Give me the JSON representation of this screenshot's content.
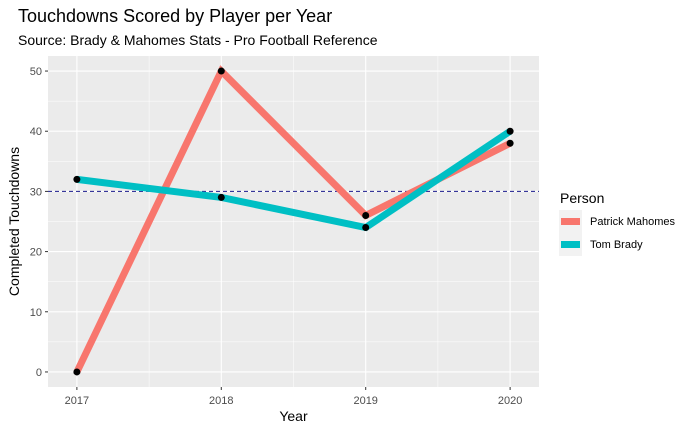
{
  "chart_data": {
    "type": "line",
    "title": "Touchdowns Scored by Player per Year",
    "subtitle": "Source: Brady & Mahomes Stats - Pro Football Reference",
    "xlabel": "Year",
    "ylabel": "Completed Touchdowns",
    "x": [
      "2017",
      "2018",
      "2019",
      "2020"
    ],
    "yticks": [
      "0",
      "10",
      "20",
      "30",
      "40",
      "50"
    ],
    "ylim": [
      -2.5,
      52.5
    ],
    "grid": true,
    "legend_position": "right",
    "legend_title": "Person",
    "reference_line": {
      "y": 30,
      "style": "dashed",
      "color": "#1a1a8c"
    },
    "series": [
      {
        "name": "Patrick Mahomes",
        "color": "#F8766D",
        "values": [
          0,
          50,
          26,
          38
        ]
      },
      {
        "name": "Tom Brady",
        "color": "#00BFC4",
        "values": [
          32,
          29,
          24,
          40
        ]
      }
    ]
  }
}
